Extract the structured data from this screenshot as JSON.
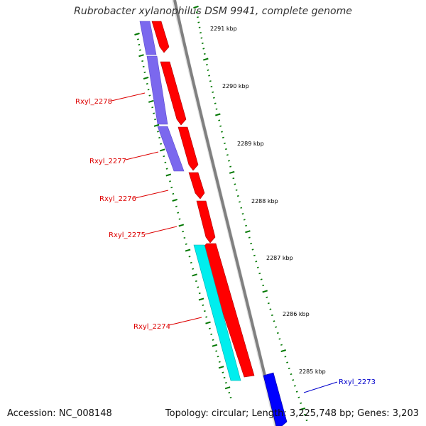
{
  "title": "Rubrobacter xylanophilus DSM 9941, complete genome",
  "footer": {
    "accession": "Accession: NC_008148",
    "summary": "Topology: circular; Length: 3,225,748 bp; Genes: 3,203"
  },
  "colors": {
    "forward_gene": "#ff0000",
    "reverse_gene": "#0000ff",
    "feature_purple": "#7b68ee",
    "feature_cyan": "#00eeee",
    "backbone": "#808080",
    "ticks": "#007700",
    "label_red": "#dd0000",
    "label_blue": "#0000cc",
    "kbp_label": "#000000"
  },
  "scale_labels": [
    "2291 kbp",
    "2290 kbp",
    "2289 kbp",
    "2288 kbp",
    "2287 kbp",
    "2286 kbp",
    "2285 kbp"
  ],
  "genes": [
    {
      "id": "Rxyl_2278",
      "strand": "forward"
    },
    {
      "id": "Rxyl_2277",
      "strand": "forward"
    },
    {
      "id": "Rxyl_2276",
      "strand": "forward"
    },
    {
      "id": "Rxyl_2275",
      "strand": "forward"
    },
    {
      "id": "Rxyl_2274",
      "strand": "forward"
    },
    {
      "id": "Rxyl_2273",
      "strand": "reverse"
    }
  ]
}
